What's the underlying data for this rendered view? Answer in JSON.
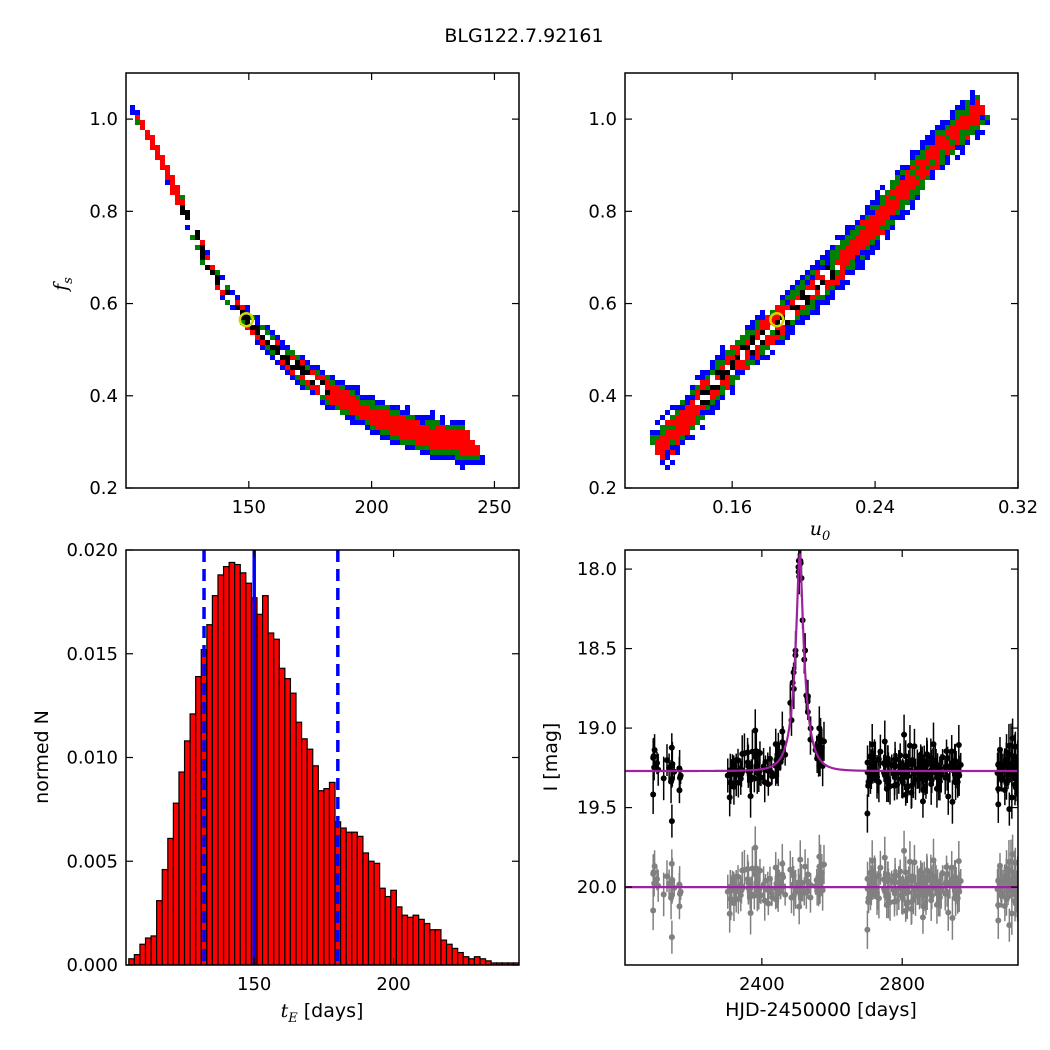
{
  "figure": {
    "title": "BLG122.7.92161"
  },
  "colors": {
    "level1": "#0000ff",
    "level2": "#008000",
    "level3": "#ff0000",
    "level4": "#000000",
    "best_fit_marker": "#d4d400",
    "hist_bar": "#ff0000",
    "median_line": "#0000ff",
    "model_curve": "#a020a0",
    "data_points": "#000000",
    "residual_points": "#808080"
  },
  "chart_data": [
    {
      "id": "tE-fs",
      "type": "heatmap",
      "xlabel": "",
      "ylabel_italic": "f",
      "ylabel_sub": "s",
      "xlim": [
        100,
        260
      ],
      "ylim": [
        0.2,
        1.1
      ],
      "xticks": [
        "150",
        "200",
        "250"
      ],
      "yticks": [
        "0.2",
        "0.4",
        "0.6",
        "0.8",
        "1.0"
      ],
      "levels": [
        "blue",
        "green",
        "red",
        "black"
      ],
      "ridge": {
        "x": [
          106,
          115,
          125,
          135,
          150,
          165,
          180,
          200,
          220,
          240
        ],
        "y": [
          0.99,
          0.9,
          0.78,
          0.66,
          0.56,
          0.48,
          0.42,
          0.36,
          0.32,
          0.3
        ]
      },
      "best_fit": [
        149,
        0.565
      ]
    },
    {
      "id": "u0-fs",
      "type": "heatmap",
      "xlabel_italic": "u",
      "xlabel_sub": "0",
      "xlim": [
        0.1,
        0.32
      ],
      "ylim": [
        0.2,
        1.1
      ],
      "xticks": [
        "0.16",
        "0.24",
        "0.32"
      ],
      "yticks": [
        "0.2",
        "0.4",
        "0.6",
        "0.8",
        "1.0"
      ],
      "levels": [
        "blue",
        "green",
        "red",
        "black"
      ],
      "ridge": {
        "x": [
          0.117,
          0.14,
          0.16,
          0.185,
          0.21,
          0.235,
          0.26,
          0.28,
          0.29,
          0.298
        ],
        "y": [
          0.285,
          0.39,
          0.48,
          0.565,
          0.655,
          0.76,
          0.88,
          0.96,
          1.0,
          1.03
        ]
      },
      "best_fit": [
        0.185,
        0.565
      ]
    },
    {
      "id": "tE-hist",
      "type": "bar",
      "xlabel_italic": "t",
      "xlabel_sub": "E",
      "xlabel_rest": " [days]",
      "ylabel": "normed N",
      "xlim": [
        104,
        245
      ],
      "ylim": [
        0.0,
        0.02
      ],
      "xticks": [
        "150",
        "200"
      ],
      "yticks": [
        "0.000",
        "0.005",
        "0.010",
        "0.015",
        "0.020"
      ],
      "bin_start": 105,
      "bin_width": 2,
      "values": [
        0.0003,
        0.0005,
        0.001,
        0.0013,
        0.0014,
        0.0031,
        0.0046,
        0.0061,
        0.0078,
        0.0093,
        0.0108,
        0.0121,
        0.0139,
        0.0152,
        0.0164,
        0.0178,
        0.0188,
        0.0192,
        0.0194,
        0.0193,
        0.0189,
        0.0184,
        0.0177,
        0.0169,
        0.0178,
        0.016,
        0.0157,
        0.0143,
        0.0138,
        0.0131,
        0.0117,
        0.0109,
        0.0104,
        0.0096,
        0.0084,
        0.0085,
        0.0088,
        0.0069,
        0.0066,
        0.0064,
        0.0064,
        0.0062,
        0.0054,
        0.005,
        0.0049,
        0.0037,
        0.0033,
        0.0036,
        0.0028,
        0.0024,
        0.0023,
        0.0024,
        0.0022,
        0.002,
        0.0017,
        0.0017,
        0.0012,
        0.001,
        0.0008,
        0.0006,
        0.0004,
        0.0003,
        0.0004,
        0.0003,
        0.0002,
        0.0001,
        0.0001,
        0.0001,
        0.0001,
        0.0001
      ],
      "median": 150,
      "quantiles": [
        132,
        180
      ]
    },
    {
      "id": "lightcurve",
      "type": "scatter",
      "xlabel": "HJD-2450000 [days]",
      "ylabel": "I [mag]",
      "xlim": [
        2010,
        3130
      ],
      "ylim": [
        20.49,
        17.88
      ],
      "xticks": [
        "2400",
        "2800"
      ],
      "yticks": [
        "18.0",
        "18.5",
        "19.0",
        "19.5",
        "20.0"
      ],
      "model": {
        "t0": 2508,
        "tE": 149,
        "u0": 0.185,
        "fs": 0.565,
        "I_base": 19.27
      },
      "residual_offset": 20.0
    }
  ]
}
